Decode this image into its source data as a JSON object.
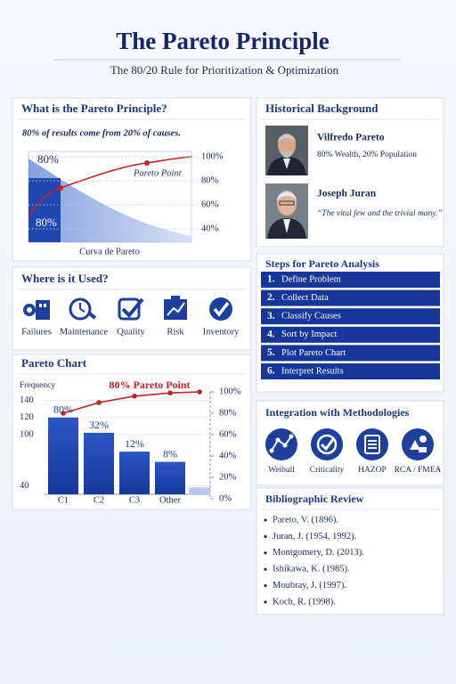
{
  "header": {
    "title": "The Pareto Principle",
    "subtitle": "The 80/20 Rule for Prioritization & Optimization"
  },
  "what": {
    "title": "What is the Pareto Principle?",
    "statement": "80% of results come from 20% of causes.",
    "top_label": "80%",
    "point_label": "Pareto Point",
    "bottom_label": "80%",
    "ticks": [
      {
        "value": 100,
        "label": "100%"
      },
      {
        "value": 80,
        "label": "80%"
      },
      {
        "value": 60,
        "label": "60%"
      },
      {
        "value": 40,
        "label": "40%"
      }
    ],
    "caption": "Curva de Pareto"
  },
  "where": {
    "title": "Where is it Used?",
    "items": [
      "Failures",
      "Maintenance",
      "Quality",
      "Risk",
      "Inventory"
    ]
  },
  "pareto_chart": {
    "title": "Pareto Chart",
    "y_label": "Frequency",
    "annotation": "80% Pareto Point",
    "categories": [
      "C1",
      "C2",
      "C3",
      "Other",
      null
    ],
    "values": [
      120,
      102,
      80,
      68,
      38
    ],
    "bar_labels": [
      "80%",
      "32%",
      "12%",
      "8%",
      null
    ],
    "cumulative": [
      80,
      90,
      96,
      99,
      100
    ],
    "ylim": [
      30,
      150
    ],
    "yticks": [
      140,
      120,
      100,
      40
    ],
    "y2lim": [
      0,
      100
    ],
    "y2ticks": [
      {
        "value": 100,
        "label": "100%"
      },
      {
        "value": 80,
        "label": "80%"
      },
      {
        "value": 60,
        "label": "60%"
      },
      {
        "value": 40,
        "label": "40%"
      },
      {
        "value": 20,
        "label": "20%"
      },
      {
        "value": 0,
        "label": "0%"
      }
    ]
  },
  "history": {
    "title": "Historical Background",
    "people": [
      {
        "name": "Vilfredo Pareto",
        "text": "80% Wealth, 20% Population"
      },
      {
        "name": "Joseph Juran",
        "text": "“The vital few and the trivial many.”"
      }
    ]
  },
  "steps": {
    "title": "Steps for Pareto Analysis",
    "items": [
      {
        "number": "1.",
        "label": "Define Problem"
      },
      {
        "number": "2.",
        "label": "Collect Data"
      },
      {
        "number": "3.",
        "label": "Classify Causes"
      },
      {
        "number": "4.",
        "label": "Sort by Impact"
      },
      {
        "number": "5.",
        "label": "Plot Pareto Chart"
      },
      {
        "number": "6.",
        "label": "Interpret Results"
      }
    ]
  },
  "integration": {
    "title": "Integration with Methodologies",
    "items": [
      "Weibull",
      "Criticality",
      "HAZOP",
      "RCA / FMEA"
    ]
  },
  "bibliography": {
    "title": "Bibliographic Review",
    "items": [
      "Pareto, V. (1896).",
      "Juran, J. (1954, 1992).",
      "Montgomery, D. (2013).",
      "Ishikawa, K. (1985).",
      "Moubray, J. (1997).",
      "Koch, R. (1998)."
    ]
  }
}
